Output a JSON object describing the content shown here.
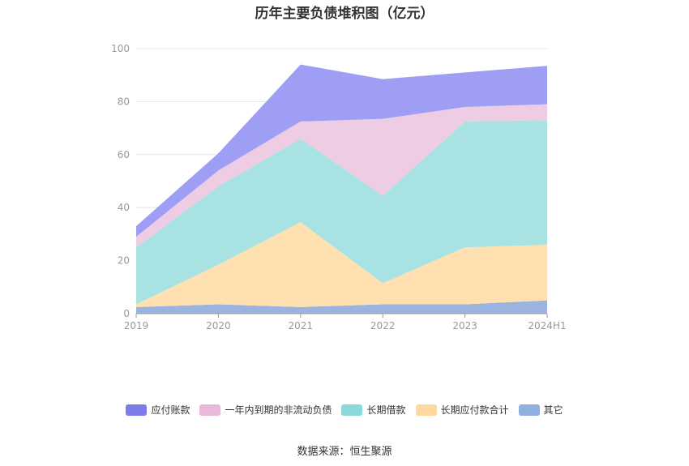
{
  "chart_data": {
    "type": "area",
    "stacked": true,
    "title": "历年主要负债堆积图（亿元）",
    "categories": [
      "2019",
      "2020",
      "2021",
      "2022",
      "2023",
      "2024H1"
    ],
    "ylim": [
      0,
      100
    ],
    "yticks": [
      0,
      20,
      40,
      60,
      80,
      100
    ],
    "grid": true,
    "legend_position": "bottom",
    "series": [
      {
        "name": "其它",
        "color": "#9ab4df",
        "values": [
          2.5,
          3.5,
          2.5,
          3.5,
          3.5,
          5.0
        ]
      },
      {
        "name": "长期应付款合计",
        "color": "#ffe0b0",
        "values": [
          1.0,
          15.0,
          32.0,
          8.0,
          21.5,
          21.0
        ]
      },
      {
        "name": "长期借款",
        "color": "#a8e2e2",
        "values": [
          21.5,
          29.5,
          31.5,
          33.0,
          47.5,
          47.0
        ]
      },
      {
        "name": "一年内到期的非流动负债",
        "color": "#eecce4",
        "values": [
          4.0,
          6.0,
          6.5,
          29.0,
          5.5,
          6.0
        ]
      },
      {
        "name": "应付账款",
        "color": "#9e9ef4",
        "values": [
          4.0,
          6.5,
          21.5,
          15.0,
          13.0,
          14.5
        ]
      }
    ],
    "legend_colors": [
      "#7b7bea",
      "#e8b9d8",
      "#8ad8d8",
      "#ffd8a0",
      "#8fb0e0"
    ]
  },
  "legend_order": [
    "应付账款",
    "一年内到期的非流动负债",
    "长期借款",
    "长期应付款合计",
    "其它"
  ],
  "source": "数据来源：恒生聚源"
}
